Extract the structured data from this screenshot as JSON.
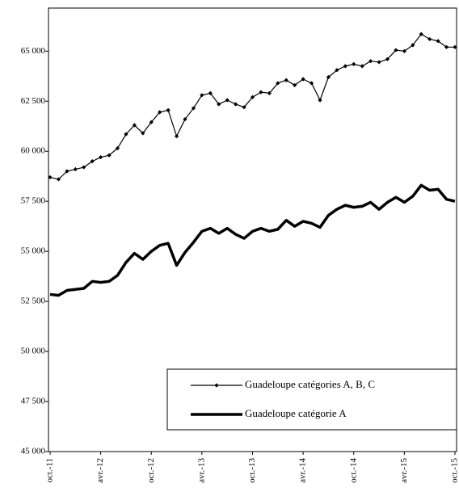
{
  "chart_data": {
    "type": "line",
    "categories": [
      "oct.-11",
      null,
      null,
      null,
      null,
      null,
      "avr.-12",
      null,
      null,
      null,
      null,
      null,
      "oct.-12",
      null,
      null,
      null,
      null,
      null,
      "avr.-13",
      null,
      null,
      null,
      null,
      null,
      "oct.-13",
      null,
      null,
      null,
      null,
      null,
      "avr.-14",
      null,
      null,
      null,
      null,
      null,
      "oct.-14",
      null,
      null,
      null,
      null,
      null,
      "avr.-15",
      null,
      null,
      null,
      null,
      null,
      "oct.-15"
    ],
    "series": [
      {
        "name": "Guadeloupe catégories A, B, C",
        "color": "#000000",
        "line_width": 1.2,
        "marker": "diamond",
        "values": [
          58700,
          58600,
          59000,
          59100,
          59200,
          59500,
          59700,
          59800,
          60150,
          60850,
          61300,
          60900,
          61450,
          61950,
          62050,
          60750,
          61600,
          62150,
          62800,
          62900,
          62350,
          62550,
          62350,
          62200,
          62700,
          62950,
          62900,
          63400,
          63550,
          63300,
          63600,
          63400,
          62550,
          63700,
          64050,
          64250,
          64350,
          64250,
          64500,
          64450,
          64600,
          65050,
          65000,
          65300,
          65850,
          65600,
          65500,
          65200,
          65200
        ]
      },
      {
        "name": "Guadeloupe catégorie A",
        "color": "#000000",
        "line_width": 3.5,
        "marker": "none",
        "values": [
          52850,
          52800,
          53050,
          53100,
          53150,
          53500,
          53450,
          53500,
          53800,
          54450,
          54900,
          54600,
          55000,
          55300,
          55400,
          54300,
          54950,
          55450,
          56000,
          56150,
          55900,
          56150,
          55850,
          55650,
          56000,
          56150,
          56000,
          56100,
          56550,
          56250,
          56500,
          56400,
          56200,
          56800,
          57100,
          57300,
          57200,
          57250,
          57450,
          57100,
          57450,
          57700,
          57450,
          57750,
          58300,
          58050,
          58100,
          57600,
          57500
        ]
      }
    ],
    "ylim": [
      45000,
      67150
    ],
    "yticks": [
      {
        "value": 45000,
        "label": "45 000"
      },
      {
        "value": 47500,
        "label": "47 500"
      },
      {
        "value": 50000,
        "label": "50 000"
      },
      {
        "value": 52500,
        "label": "52 500"
      },
      {
        "value": 55000,
        "label": "55 000"
      },
      {
        "value": 57500,
        "label": "57 500"
      },
      {
        "value": 60000,
        "label": "60 000"
      },
      {
        "value": 62500,
        "label": "62 500"
      },
      {
        "value": 65000,
        "label": "65 000"
      }
    ],
    "legend": "bottom-right"
  }
}
